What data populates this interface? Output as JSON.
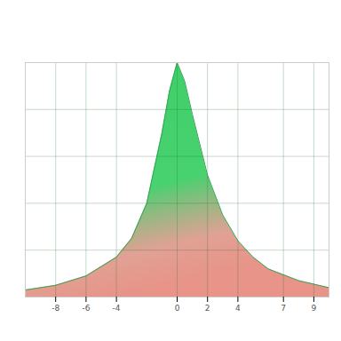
{
  "chart_data": {
    "type": "area",
    "x": [
      -10,
      -8,
      -6,
      -4,
      -3,
      -2,
      -1,
      -0.5,
      0,
      0.5,
      1,
      2,
      3,
      4,
      5,
      6,
      8,
      10
    ],
    "values": [
      0.03,
      0.05,
      0.09,
      0.17,
      0.25,
      0.4,
      0.7,
      0.88,
      1.0,
      0.92,
      0.78,
      0.52,
      0.35,
      0.24,
      0.17,
      0.12,
      0.07,
      0.04
    ],
    "color": "#3ecf68",
    "xlim": [
      -10,
      10
    ],
    "xticks": [
      -8,
      -6,
      -4,
      0,
      2,
      4,
      7,
      9
    ],
    "ylim": [
      0,
      1
    ],
    "yticks": [
      0,
      0.2,
      0.4,
      0.6,
      0.8,
      1
    ],
    "grid": true,
    "tick_labels": "x"
  }
}
